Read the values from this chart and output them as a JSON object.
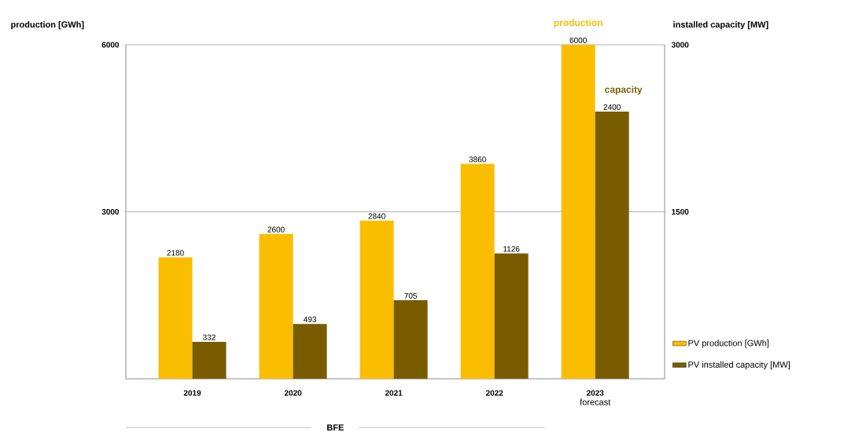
{
  "chart_data": {
    "type": "bar",
    "ylabel": "production [GWh]",
    "y2label": "installed capacity [MW]",
    "categories": [
      "2019",
      "2020",
      "2021",
      "2022",
      "2023"
    ],
    "series": [
      {
        "name": "PV production [GWh]",
        "color": "#fbbd00",
        "values": [
          2180,
          2600,
          2840,
          3860,
          6000
        ]
      },
      {
        "name": "PV installed capacity [MW]",
        "color": "#7a5c00",
        "axis": "y2",
        "values": [
          332,
          493,
          705,
          1126,
          2400
        ]
      }
    ],
    "ylim": [
      0,
      6000
    ],
    "yticks": [
      3000,
      6000
    ],
    "y2lim": [
      0,
      3000
    ],
    "y2ticks": [
      1500,
      3000
    ],
    "data_labels": true,
    "grid": "y",
    "legend": "bottom right",
    "annotations": [
      "production",
      "capacity",
      "forecast",
      "BFE"
    ]
  }
}
